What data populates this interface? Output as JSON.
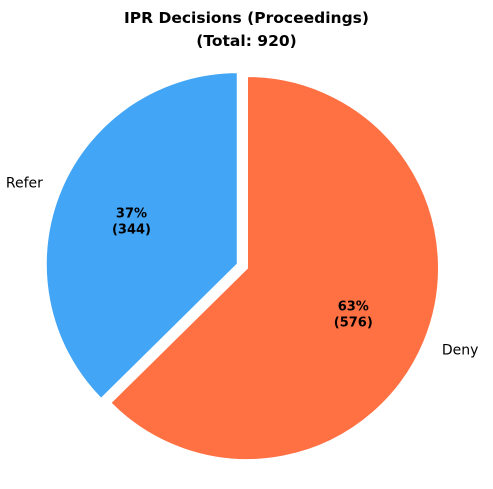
{
  "chart_data": {
    "type": "pie",
    "title_lines": [
      "IPR Decisions (Proceedings)",
      "(Total: 920)"
    ],
    "total": 920,
    "start_angle_deg": 90,
    "direction": "counterclockwise",
    "slices": [
      {
        "label": "Refer",
        "value": 344,
        "percent_label": "37%",
        "count_label": "(344)",
        "color": "#42a5f5",
        "exploded": true
      },
      {
        "label": "Deny",
        "value": 576,
        "percent_label": "63%",
        "count_label": "(576)",
        "color": "#ff7043",
        "exploded": false
      }
    ],
    "legend": "none"
  }
}
